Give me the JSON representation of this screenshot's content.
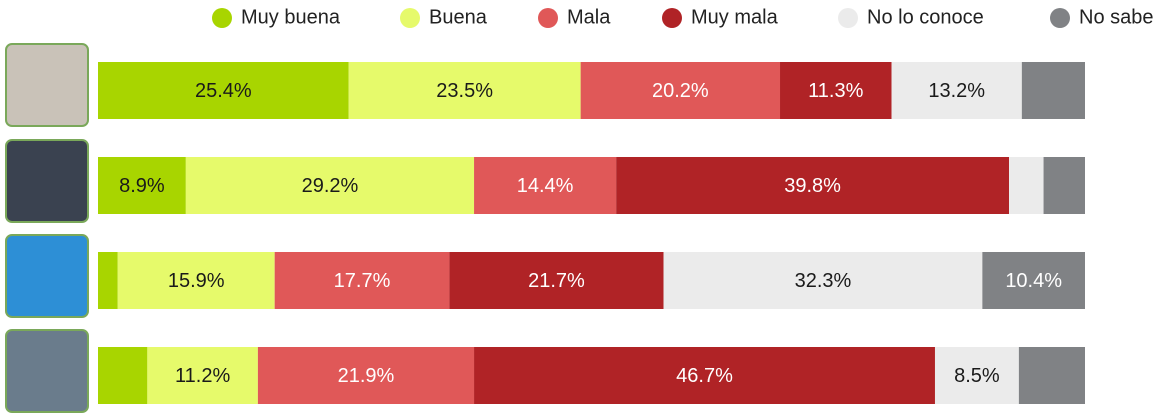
{
  "chart_data": {
    "type": "stacked-bar-horizontal",
    "categories": [
      null,
      null,
      null,
      null
    ],
    "xlim": [
      0,
      100
    ],
    "legend": "top",
    "series": [
      {
        "name": "Muy buena",
        "color": "#a8d500",
        "text_color": "#1a1a1a",
        "values": [
          25.4,
          8.9,
          2.0,
          5.0
        ],
        "value_labels": [
          "25.4%",
          "8.9%",
          null,
          null
        ]
      },
      {
        "name": "Buena",
        "color": "#e6fa6b",
        "text_color": "#1a1a1a",
        "values": [
          23.5,
          29.2,
          15.9,
          11.2
        ],
        "value_labels": [
          "23.5%",
          "29.2%",
          "15.9%",
          "11.2%"
        ]
      },
      {
        "name": "Mala",
        "color": "#e05858",
        "text_color": "#ffffff",
        "values": [
          20.2,
          14.4,
          17.7,
          21.9
        ],
        "value_labels": [
          "20.2%",
          "14.4%",
          "17.7%",
          "21.9%"
        ]
      },
      {
        "name": "Muy mala",
        "color": "#b02326",
        "text_color": "#ffffff",
        "values": [
          11.3,
          39.8,
          21.7,
          46.7
        ],
        "value_labels": [
          "11.3%",
          "39.8%",
          "21.7%",
          "46.7%"
        ]
      },
      {
        "name": "No lo conoce",
        "color": "#ebebeb",
        "text_color": "#1a1a1a",
        "values": [
          13.2,
          3.5,
          32.3,
          8.5
        ],
        "value_labels": [
          "13.2%",
          null,
          "32.3%",
          "8.5%"
        ]
      },
      {
        "name": "No sabe",
        "color": "#808285",
        "text_color": "#ffffff",
        "values": [
          6.4,
          4.2,
          10.4,
          6.7
        ],
        "value_labels": [
          null,
          null,
          "10.4%",
          null
        ]
      }
    ]
  }
}
